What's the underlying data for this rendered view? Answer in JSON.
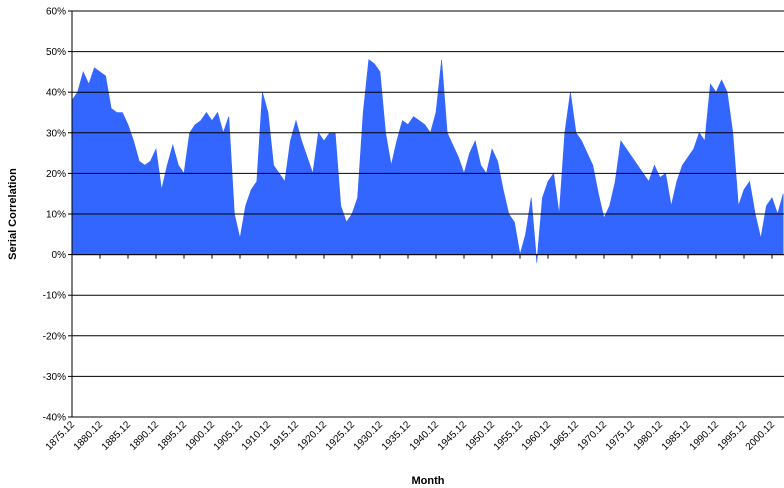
{
  "chart_data": {
    "type": "area",
    "x_label": "Month",
    "y_label": "Serial Correlation",
    "categories": [
      "1875.12",
      null,
      null,
      null,
      null,
      "1880.12",
      null,
      null,
      null,
      null,
      "1885.12",
      null,
      null,
      null,
      null,
      "1890.12",
      null,
      null,
      null,
      null,
      "1895.12",
      null,
      null,
      null,
      null,
      "1900.12",
      null,
      null,
      null,
      null,
      "1905.12",
      null,
      null,
      null,
      null,
      "1910.12",
      null,
      null,
      null,
      null,
      "1915.12",
      null,
      null,
      null,
      null,
      "1920.12",
      null,
      null,
      null,
      null,
      "1925.12",
      null,
      null,
      null,
      null,
      "1930.12",
      null,
      null,
      null,
      null,
      "1935.12",
      null,
      null,
      null,
      null,
      "1940.12",
      null,
      null,
      null,
      null,
      "1945.12",
      null,
      null,
      null,
      null,
      "1950.12",
      null,
      null,
      null,
      null,
      "1955.12",
      null,
      null,
      null,
      null,
      "1960.12",
      null,
      null,
      null,
      null,
      "1965.12",
      null,
      null,
      null,
      null,
      "1970.12",
      null,
      null,
      null,
      null,
      "1975.12",
      null,
      null,
      null,
      null,
      "1980.12",
      null,
      null,
      null,
      null,
      "1985.12",
      null,
      null,
      null,
      null,
      "1990.12",
      null,
      null,
      null,
      null,
      "1995.12",
      null,
      null,
      null,
      null,
      "2000.12",
      null,
      null
    ],
    "values": [
      38,
      40,
      45,
      42,
      46,
      45,
      44,
      36,
      35,
      35,
      32,
      28,
      23,
      22,
      23,
      26,
      16,
      22,
      27,
      22,
      20,
      30,
      32,
      33,
      35,
      33,
      35,
      30,
      34,
      10,
      4,
      12,
      16,
      18,
      40,
      35,
      22,
      20,
      18,
      28,
      33,
      28,
      24,
      20,
      30,
      28,
      30,
      30,
      12,
      8,
      10,
      14,
      35,
      48,
      47,
      45,
      30,
      22,
      28,
      33,
      32,
      34,
      33,
      32,
      30,
      35,
      48,
      30,
      27,
      24,
      20,
      25,
      28,
      22,
      20,
      26,
      23,
      16,
      10,
      8,
      0,
      5,
      14,
      -2,
      14,
      18,
      20,
      10,
      30,
      40,
      30,
      28,
      25,
      22,
      15,
      9,
      12,
      18,
      28,
      26,
      24,
      22,
      20,
      18,
      22,
      19,
      20,
      12,
      18,
      22,
      24,
      26,
      30,
      28,
      42,
      40,
      43,
      40,
      30,
      12,
      16,
      18,
      10,
      4,
      12,
      14,
      10,
      15
    ],
    "color": "#3366ff",
    "ylim": [
      -40,
      60
    ],
    "yticks": [
      {
        "value": -40,
        "label": "-40%"
      },
      {
        "value": -30,
        "label": "-30%"
      },
      {
        "value": -20,
        "label": "-20%"
      },
      {
        "value": -10,
        "label": "-10%"
      },
      {
        "value": 0,
        "label": "0%"
      },
      {
        "value": 10,
        "label": "10%"
      },
      {
        "value": 20,
        "label": "20%"
      },
      {
        "value": 30,
        "label": "30%"
      },
      {
        "value": 40,
        "label": "40%"
      },
      {
        "value": 50,
        "label": "50%"
      },
      {
        "value": 60,
        "label": "60%"
      }
    ],
    "grid": true
  }
}
